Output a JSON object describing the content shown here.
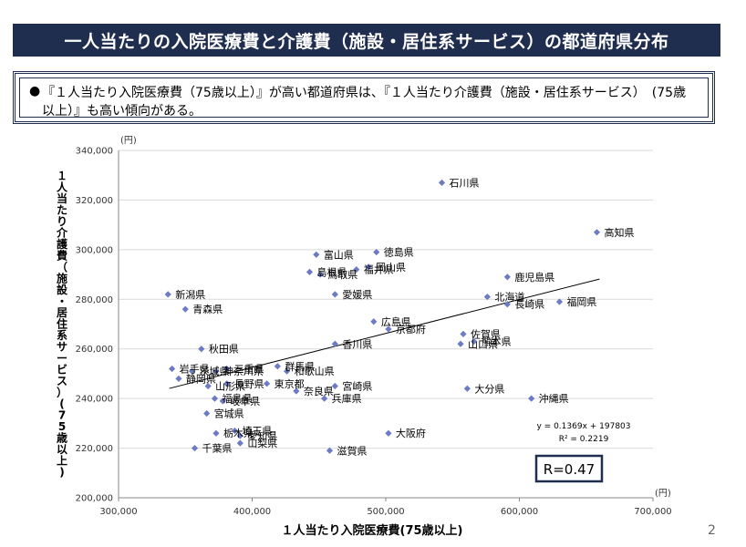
{
  "header": {
    "title": "一人当たりの入院医療費と介護費（施設・居住系サービス）の都道府県分布"
  },
  "summary": {
    "bullet": "●",
    "text": "『１人当たり入院医療費（75歳以上）』が高い都道府県は、『１人当たり介護費（施設・居住系サービス）　(75歳以上）』も高い傾向がある。"
  },
  "page_number": "2",
  "colors": {
    "header_bg": "#1f2d4f",
    "marker": "#6b7bc4",
    "trendline": "#000000",
    "r_box_border": "#1f2d4f"
  },
  "chart_data": {
    "type": "scatter",
    "xlabel": "１人当たり入院医療費(75歳以上)",
    "ylabel": "１人当たり介護費（施設・居住系サービス）(75歳以上)",
    "x_unit": "(円)",
    "y_unit": "(円)",
    "xlim": [
      300000,
      700000
    ],
    "ylim": [
      200000,
      340000
    ],
    "x_ticks": [
      300000,
      400000,
      500000,
      600000,
      700000
    ],
    "y_ticks": [
      200000,
      220000,
      240000,
      260000,
      280000,
      300000,
      320000,
      340000
    ],
    "x_tick_labels": [
      "300,000",
      "400,000",
      "500,000",
      "600,000",
      "700,000"
    ],
    "y_tick_labels": [
      "200,000",
      "220,000",
      "240,000",
      "260,000",
      "280,000",
      "300,000",
      "320,000",
      "340,000"
    ],
    "grid": "horizontal",
    "trendline": {
      "slope": 0.1369,
      "intercept": 197803,
      "x_range": [
        338000,
        660000
      ]
    },
    "equation": "y = 0.1369x + 197803",
    "r_squared": "R² = 0.2219",
    "r_label": "R=0.47",
    "points": [
      {
        "name": "石川県",
        "x": 542000,
        "y": 327000
      },
      {
        "name": "高知県",
        "x": 658000,
        "y": 307000
      },
      {
        "name": "徳島県",
        "x": 493000,
        "y": 299000
      },
      {
        "name": "富山県",
        "x": 448000,
        "y": 298000
      },
      {
        "name": "岡山県",
        "x": 487000,
        "y": 293000
      },
      {
        "name": "鳥取県",
        "x": 451000,
        "y": 290000
      },
      {
        "name": "福井県",
        "x": 478000,
        "y": 292000
      },
      {
        "name": "島根県",
        "x": 443000,
        "y": 291000
      },
      {
        "name": "鹿児島県",
        "x": 591000,
        "y": 289000
      },
      {
        "name": "新潟県",
        "x": 337000,
        "y": 282000
      },
      {
        "name": "愛媛県",
        "x": 462000,
        "y": 282000
      },
      {
        "name": "北海道",
        "x": 576000,
        "y": 281000
      },
      {
        "name": "福岡県",
        "x": 630000,
        "y": 279000
      },
      {
        "name": "長崎県",
        "x": 591000,
        "y": 278000
      },
      {
        "name": "青森県",
        "x": 350000,
        "y": 276000
      },
      {
        "name": "広島県",
        "x": 491000,
        "y": 271000
      },
      {
        "name": "京都府",
        "x": 502000,
        "y": 268000
      },
      {
        "name": "佐賀県",
        "x": 558000,
        "y": 266000
      },
      {
        "name": "熊本県",
        "x": 566000,
        "y": 263000
      },
      {
        "name": "香川県",
        "x": 462000,
        "y": 262000
      },
      {
        "name": "山口県",
        "x": 556000,
        "y": 262000
      },
      {
        "name": "秋田県",
        "x": 362000,
        "y": 260000
      },
      {
        "name": "岩手県",
        "x": 340000,
        "y": 252000
      },
      {
        "name": "茨城県",
        "x": 355000,
        "y": 251000
      },
      {
        "name": "三重県",
        "x": 381000,
        "y": 252000
      },
      {
        "name": "神奈川県",
        "x": 373000,
        "y": 251000
      },
      {
        "name": "群馬県",
        "x": 419000,
        "y": 253000
      },
      {
        "name": "和歌山県",
        "x": 426000,
        "y": 251000
      },
      {
        "name": "静岡県",
        "x": 345000,
        "y": 248000
      },
      {
        "name": "山形県",
        "x": 367000,
        "y": 245000
      },
      {
        "name": "長野県",
        "x": 381000,
        "y": 246000
      },
      {
        "name": "東京都",
        "x": 411000,
        "y": 246000
      },
      {
        "name": "宮崎県",
        "x": 462000,
        "y": 245000
      },
      {
        "name": "奈良県",
        "x": 433000,
        "y": 243000
      },
      {
        "name": "大分県",
        "x": 561000,
        "y": 244000
      },
      {
        "name": "兵庫県",
        "x": 454000,
        "y": 240000
      },
      {
        "name": "福島県",
        "x": 372000,
        "y": 240000
      },
      {
        "name": "岐阜県",
        "x": 378000,
        "y": 239000
      },
      {
        "name": "沖縄県",
        "x": 609000,
        "y": 240000
      },
      {
        "name": "宮城県",
        "x": 366000,
        "y": 234000
      },
      {
        "name": "埼玉県",
        "x": 387000,
        "y": 227000
      },
      {
        "name": "愛知県",
        "x": 391000,
        "y": 225000
      },
      {
        "name": "大阪府",
        "x": 502000,
        "y": 226000
      },
      {
        "name": "栃木県",
        "x": 373000,
        "y": 226000
      },
      {
        "name": "山梨県",
        "x": 391000,
        "y": 222000
      },
      {
        "name": "千葉県",
        "x": 357000,
        "y": 220000
      },
      {
        "name": "滋賀県",
        "x": 458000,
        "y": 219000
      }
    ]
  }
}
